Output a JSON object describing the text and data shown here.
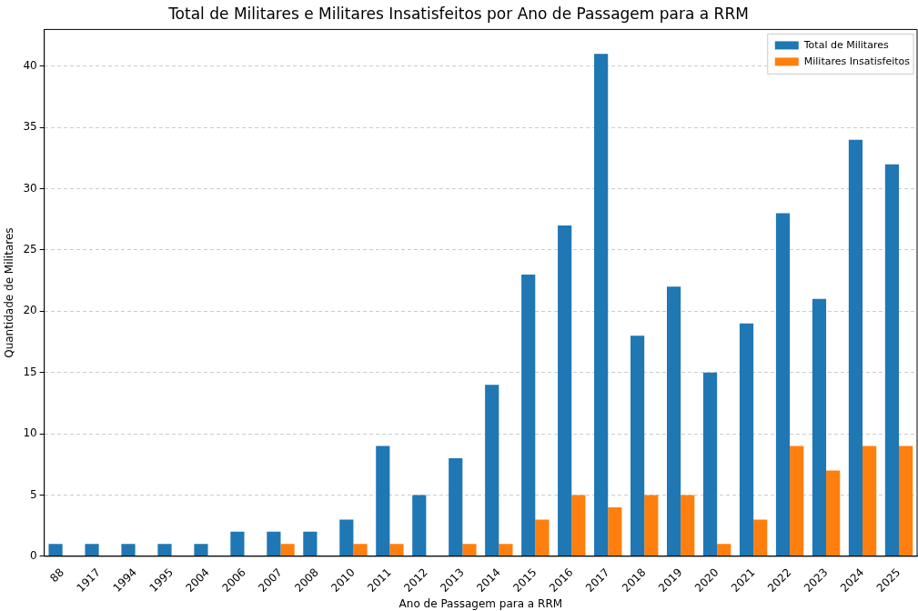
{
  "chart_data": {
    "type": "bar",
    "title": "Total de Militares e Militares Insatisfeitos por Ano de Passagem para a RRM",
    "xlabel": "Ano de Passagem para a RRM",
    "ylabel": "Quantidade de Militares",
    "categories": [
      "88",
      "1917",
      "1994",
      "1995",
      "2004",
      "2006",
      "2007",
      "2008",
      "2010",
      "2011",
      "2012",
      "2013",
      "2014",
      "2015",
      "2016",
      "2017",
      "2018",
      "2019",
      "2020",
      "2021",
      "2022",
      "2023",
      "2024",
      "2025"
    ],
    "series": [
      {
        "name": "Total de Militares",
        "color": "#1f77b4",
        "values": [
          1,
          1,
          1,
          1,
          1,
          2,
          2,
          2,
          3,
          9,
          5,
          8,
          14,
          23,
          27,
          41,
          18,
          22,
          15,
          19,
          28,
          21,
          34,
          32
        ]
      },
      {
        "name": "Militares Insatisfeitos",
        "color": "#ff7f0e",
        "values": [
          0,
          0,
          0,
          0,
          0,
          0,
          1,
          0,
          1,
          1,
          0,
          1,
          1,
          3,
          5,
          4,
          5,
          5,
          1,
          3,
          9,
          7,
          9,
          9
        ]
      }
    ],
    "ylim": [
      0,
      43
    ],
    "yticks": [
      0,
      5,
      10,
      15,
      20,
      25,
      30,
      35,
      40
    ],
    "grid": "y",
    "legend": "top right"
  }
}
